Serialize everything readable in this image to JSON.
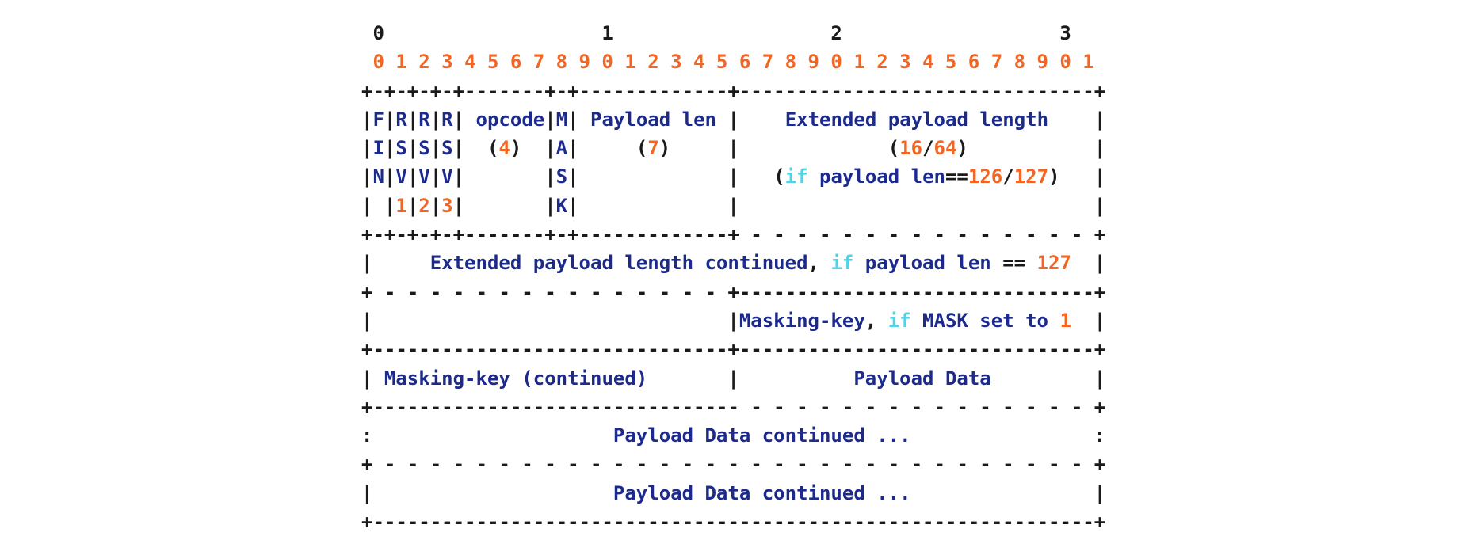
{
  "colors": {
    "plain": "#1a1a1a",
    "text": "#1c2a8c",
    "number": "#f26522",
    "keyword": "#4fd3e6"
  },
  "lines": [
    [
      [
        "plain",
        " 0                   1                   2                   3"
      ]
    ],
    [
      [
        "num",
        " 0 1 2 3 4 5 6 7 8 9 0 1 2 3 4 5 6 7 8 9 0 1 2 3 4 5 6 7 8 9 0 1"
      ]
    ],
    [
      [
        "plain",
        "+-+-+-+-+-------+-+-------------+-------------------------------+"
      ]
    ],
    [
      [
        "plain",
        "|"
      ],
      [
        "text",
        "F"
      ],
      [
        "plain",
        "|"
      ],
      [
        "text",
        "R"
      ],
      [
        "plain",
        "|"
      ],
      [
        "text",
        "R"
      ],
      [
        "plain",
        "|"
      ],
      [
        "text",
        "R"
      ],
      [
        "plain",
        "| "
      ],
      [
        "text",
        "opcode"
      ],
      [
        "plain",
        "|"
      ],
      [
        "text",
        "M"
      ],
      [
        "plain",
        "| "
      ],
      [
        "text",
        "Payload len"
      ],
      [
        "plain",
        " |    "
      ],
      [
        "text",
        "Extended payload length"
      ],
      [
        "plain",
        "    |"
      ]
    ],
    [
      [
        "plain",
        "|"
      ],
      [
        "text",
        "I"
      ],
      [
        "plain",
        "|"
      ],
      [
        "text",
        "S"
      ],
      [
        "plain",
        "|"
      ],
      [
        "text",
        "S"
      ],
      [
        "plain",
        "|"
      ],
      [
        "text",
        "S"
      ],
      [
        "plain",
        "|  ("
      ],
      [
        "num",
        "4"
      ],
      [
        "plain",
        ")  |"
      ],
      [
        "text",
        "A"
      ],
      [
        "plain",
        "|     ("
      ],
      [
        "num",
        "7"
      ],
      [
        "plain",
        ")     |             ("
      ],
      [
        "num",
        "16"
      ],
      [
        "plain",
        "/"
      ],
      [
        "num",
        "64"
      ],
      [
        "plain",
        ")           |"
      ]
    ],
    [
      [
        "plain",
        "|"
      ],
      [
        "text",
        "N"
      ],
      [
        "plain",
        "|"
      ],
      [
        "text",
        "V"
      ],
      [
        "plain",
        "|"
      ],
      [
        "text",
        "V"
      ],
      [
        "plain",
        "|"
      ],
      [
        "text",
        "V"
      ],
      [
        "plain",
        "|       |"
      ],
      [
        "text",
        "S"
      ],
      [
        "plain",
        "|             |   ("
      ],
      [
        "kw",
        "if"
      ],
      [
        "plain",
        " "
      ],
      [
        "text",
        "payload len"
      ],
      [
        "plain",
        "=="
      ],
      [
        "num",
        "126"
      ],
      [
        "plain",
        "/"
      ],
      [
        "num",
        "127"
      ],
      [
        "plain",
        ")   |"
      ]
    ],
    [
      [
        "plain",
        "| |"
      ],
      [
        "num",
        "1"
      ],
      [
        "plain",
        "|"
      ],
      [
        "num",
        "2"
      ],
      [
        "plain",
        "|"
      ],
      [
        "num",
        "3"
      ],
      [
        "plain",
        "|       |"
      ],
      [
        "text",
        "K"
      ],
      [
        "plain",
        "|             |                               |"
      ]
    ],
    [
      [
        "plain",
        "+-+-+-+-+-------+-+-------------+ - - - - - - - - - - - - - - - +"
      ]
    ],
    [
      [
        "plain",
        "|     "
      ],
      [
        "text",
        "Extended payload length continued"
      ],
      [
        "plain",
        ", "
      ],
      [
        "kw",
        "if"
      ],
      [
        "plain",
        " "
      ],
      [
        "text",
        "payload len"
      ],
      [
        "plain",
        " == "
      ],
      [
        "num",
        "127"
      ],
      [
        "plain",
        "  |"
      ]
    ],
    [
      [
        "plain",
        "+ - - - - - - - - - - - - - - - +-------------------------------+"
      ]
    ],
    [
      [
        "plain",
        "|                               |"
      ],
      [
        "text",
        "Masking-key"
      ],
      [
        "plain",
        ", "
      ],
      [
        "kw",
        "if"
      ],
      [
        "plain",
        " "
      ],
      [
        "text",
        "MASK set to"
      ],
      [
        "plain",
        " "
      ],
      [
        "num",
        "1"
      ],
      [
        "plain",
        "  |"
      ]
    ],
    [
      [
        "plain",
        "+-------------------------------+-------------------------------+"
      ]
    ],
    [
      [
        "plain",
        "| "
      ],
      [
        "text",
        "Masking-key (continued)"
      ],
      [
        "plain",
        "       |          "
      ],
      [
        "text",
        "Payload Data"
      ],
      [
        "plain",
        "         |"
      ]
    ],
    [
      [
        "plain",
        "+-------------------------------- - - - - - - - - - - - - - - - +"
      ]
    ],
    [
      [
        "plain",
        ":                     "
      ],
      [
        "text",
        "Payload Data continued ..."
      ],
      [
        "plain",
        "                :"
      ]
    ],
    [
      [
        "plain",
        "+ - - - - - - - - - - - - - - - - - - - - - - - - - - - - - - - +"
      ]
    ],
    [
      [
        "plain",
        "|                     "
      ],
      [
        "text",
        "Payload Data continued ..."
      ],
      [
        "plain",
        "                |"
      ]
    ],
    [
      [
        "plain",
        "+---------------------------------------------------------------+"
      ]
    ]
  ]
}
